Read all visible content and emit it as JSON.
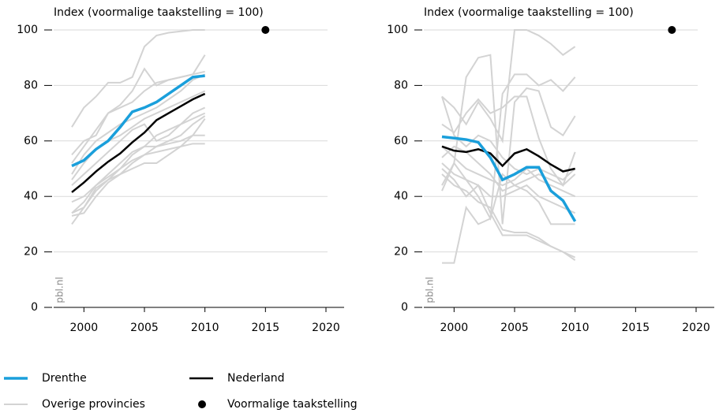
{
  "chart_data": [
    {
      "type": "line",
      "ylabel": "Index (voormalige taakstelling = 100)",
      "watermark": "pbl.nl",
      "x": [
        1999,
        2000,
        2001,
        2002,
        2003,
        2004,
        2005,
        2006,
        2007,
        2008,
        2009,
        2010
      ],
      "xlim": [
        1997.5,
        2021.5
      ],
      "xticks": [
        2000,
        2005,
        2010,
        2015,
        2020
      ],
      "ylim": [
        0,
        100
      ],
      "yticks": [
        0,
        20,
        40,
        60,
        80,
        100
      ],
      "grid": true,
      "series": [
        {
          "name": "Drenthe",
          "color": "#1a9fdb",
          "values": [
            51,
            53,
            57,
            60,
            65,
            70.5,
            72,
            74,
            77,
            80,
            83,
            83.5
          ]
        },
        {
          "name": "Nederland",
          "color": "#000000",
          "values": [
            41.5,
            45,
            49,
            52.5,
            55.5,
            59.5,
            63,
            67.5,
            70,
            72.5,
            75,
            77
          ]
        },
        {
          "name": "Overige provincies",
          "color": "#d3d3d3",
          "lines": [
            [
              65,
              72,
              76,
              81,
              81,
              83,
              94,
              98,
              99,
              99.5,
              100,
              100
            ],
            [
              55,
              60,
              62,
              70,
              73,
              78,
              86,
              80,
              82,
              83,
              84,
              85
            ],
            [
              52,
              58,
              64,
              70,
              72,
              74,
              78,
              81,
              82,
              83,
              84,
              91
            ],
            [
              48,
              55,
              60,
              63,
              66,
              68,
              70,
              72,
              75,
              78,
              82,
              84
            ],
            [
              46,
              52,
              57,
              60,
              62,
              65,
              68,
              70,
              72,
              74,
              76,
              78
            ],
            [
              44,
              48,
              52,
              56,
              60,
              64,
              66,
              60,
              62,
              66,
              70,
              72
            ],
            [
              38,
              40,
              44,
              47,
              50,
              55,
              58,
              58,
              60,
              62,
              66,
              69
            ],
            [
              34,
              36,
              42,
              46,
              48,
              50,
              52,
              52,
              55,
              58,
              62,
              68
            ],
            [
              33,
              34,
              40,
              45,
              48,
              52,
              55,
              58,
              59,
              60,
              62,
              62
            ],
            [
              30,
              36,
              43,
              46,
              50,
              53,
              55,
              56,
              57,
              58,
              59,
              59
            ],
            [
              34,
              38,
              44,
              48,
              52,
              56,
              58,
              62,
              64,
              66,
              68,
              70
            ]
          ]
        }
      ],
      "target": {
        "name": "Voormalige taakstelling",
        "color": "#000000",
        "x": 2015,
        "value": 100
      }
    },
    {
      "type": "line",
      "ylabel": "Index (voormalige taakstelling = 100)",
      "watermark": "pbl.nl",
      "x": [
        1999,
        2000,
        2001,
        2002,
        2003,
        2004,
        2005,
        2006,
        2007,
        2008,
        2009,
        2010
      ],
      "xlim": [
        1997.5,
        2021.5
      ],
      "xticks": [
        2000,
        2005,
        2010,
        2015,
        2020
      ],
      "ylim": [
        0,
        100
      ],
      "yticks": [
        0,
        20,
        40,
        60,
        80,
        100
      ],
      "grid": true,
      "series": [
        {
          "name": "Drenthe",
          "color": "#1a9fdb",
          "values": [
            61.5,
            61,
            60.5,
            59.5,
            54,
            46,
            48,
            50.5,
            50.5,
            42,
            38.5,
            31
          ]
        },
        {
          "name": "Nederland",
          "color": "#000000",
          "values": [
            58,
            56.5,
            56,
            57,
            55.5,
            51,
            55.5,
            57,
            54.5,
            51.5,
            49,
            50
          ]
        },
        {
          "name": "Overige provincies",
          "color": "#d3d3d3",
          "lines": [
            [
              76,
              72,
              66,
              74,
              68,
              60,
              100,
              100,
              98,
              95,
              91,
              94
            ],
            [
              16,
              16,
              36,
              30,
              32,
              77,
              84,
              84,
              80,
              82,
              78,
              83
            ],
            [
              42,
              52,
              83,
              90,
              91,
              30,
              74,
              79,
              78,
              65,
              62,
              69
            ],
            [
              66,
              63,
              70,
              75,
              70,
              72,
              76,
              76,
              61,
              50,
              44,
              56
            ],
            [
              76,
              62,
              58,
              62,
              60,
              54,
              50,
              48,
              50,
              48,
              46,
              50
            ],
            [
              58,
              54,
              50,
              48,
              46,
              44,
              46,
              50,
              46,
              44,
              42,
              40
            ],
            [
              52,
              48,
              46,
              44,
              40,
              40,
              42,
              44,
              40,
              38,
              36,
              34
            ],
            [
              50,
              46,
              40,
              44,
              34,
              26,
              26,
              26,
              24,
              22,
              20,
              17
            ],
            [
              48,
              44,
              42,
              38,
              36,
              28,
              27,
              27,
              25,
              22,
              20,
              18
            ],
            [
              44,
              52,
              46,
              40,
              32,
              48,
              44,
              42,
              38,
              30,
              30,
              30
            ],
            [
              54,
              58,
              56,
              52,
              48,
              42,
              44,
              46,
              48,
              46,
              44,
              48
            ]
          ]
        }
      ],
      "target": {
        "name": "Voormalige taakstelling",
        "color": "#000000",
        "x": 2018,
        "value": 100
      }
    }
  ]
}
